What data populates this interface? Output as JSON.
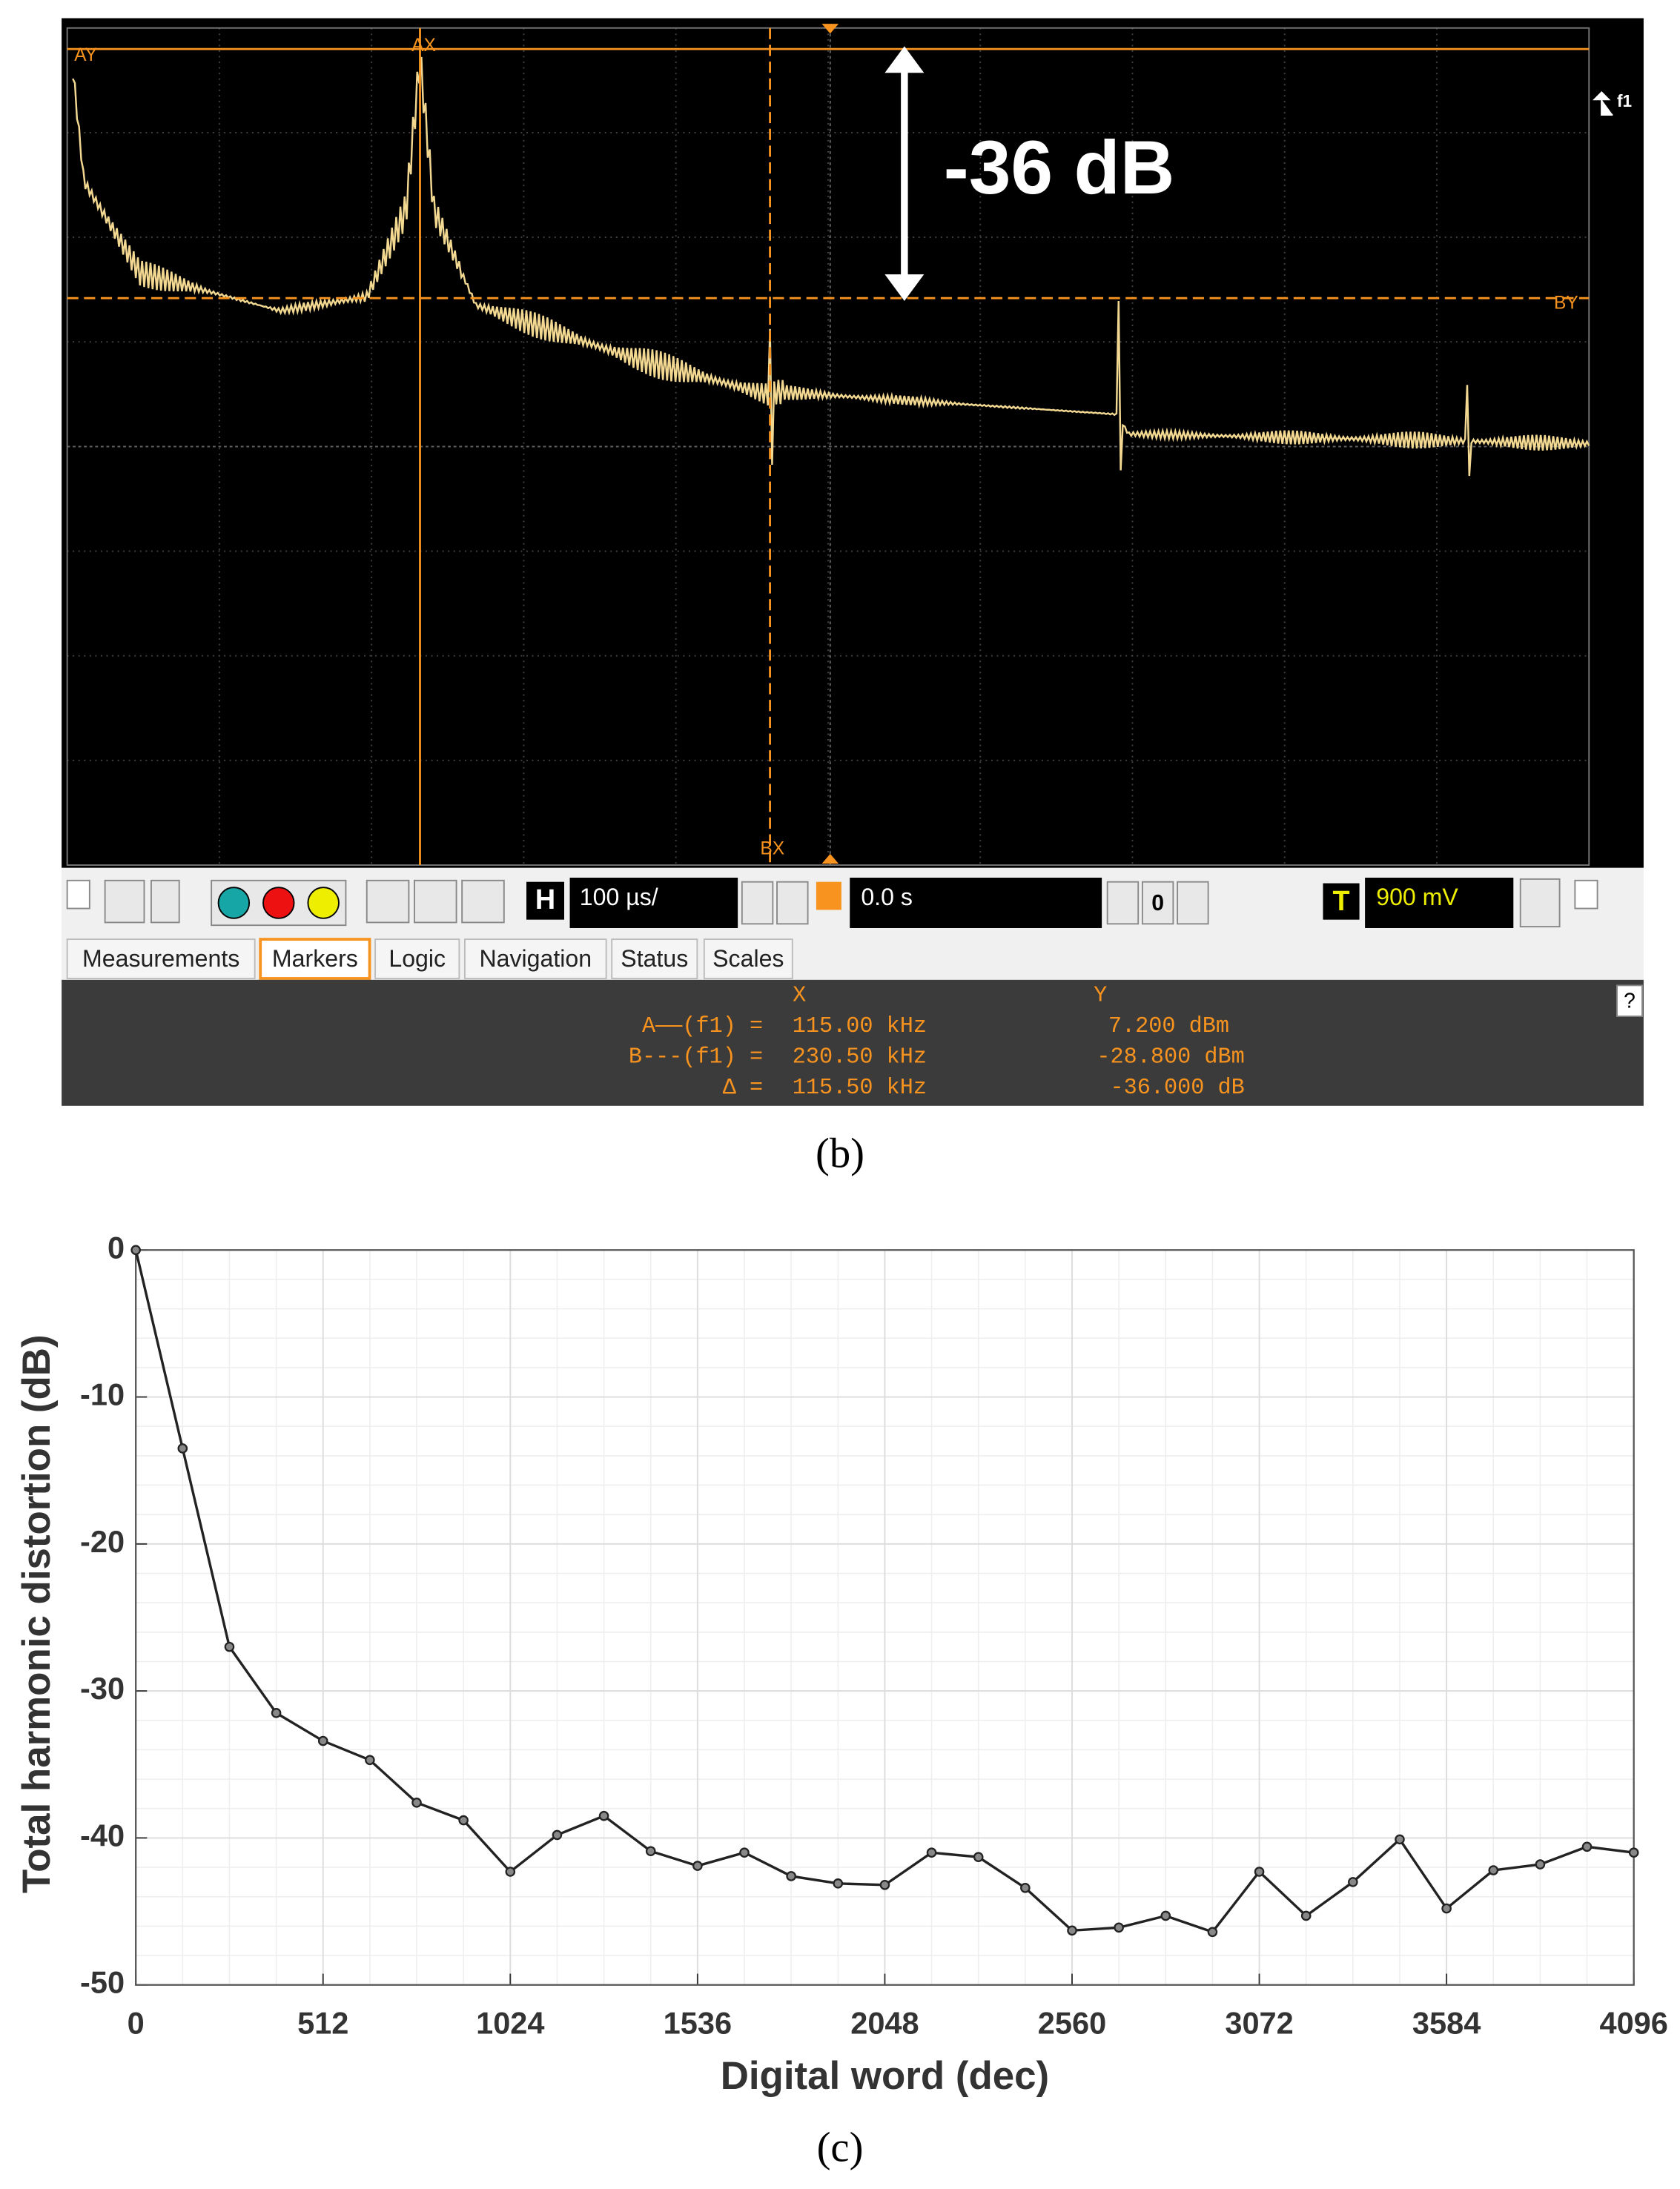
{
  "scope": {
    "annotation": "-36 dB",
    "markers": {
      "ay": "AY",
      "ax": "AX",
      "by": "BY",
      "bx": "BX",
      "f1": "f1"
    },
    "toolbar": {
      "h": "H",
      "timebase": "100 µs/",
      "position": "0.0 s",
      "nav": "0",
      "t": "T",
      "trigger": "900 mV"
    },
    "tabs": [
      "Measurements",
      "Markers",
      "Logic",
      "Navigation",
      "Status",
      "Scales"
    ],
    "readout": {
      "header_x": "X",
      "header_y": "Y",
      "help": "?",
      "rows": [
        [
          "A——(f1) =",
          "115.00 kHz",
          "7.200 dBm"
        ],
        [
          "B---(f1) =",
          "230.50 kHz",
          "-28.800 dBm"
        ],
        [
          "Δ =",
          "115.50 kHz",
          "-36.000 dB"
        ]
      ]
    },
    "caption": "(b)"
  },
  "chart_data": {
    "type": "line",
    "xlabel": "Digital word (dec)",
    "ylabel": "Total harmonic distortion (dB)",
    "caption": "(c)",
    "x": [
      0,
      128,
      256,
      384,
      512,
      640,
      768,
      896,
      1024,
      1152,
      1280,
      1408,
      1536,
      1664,
      1792,
      1920,
      2048,
      2176,
      2304,
      2432,
      2560,
      2688,
      2816,
      2944,
      3072,
      3200,
      3328,
      3456,
      3584,
      3712,
      3840,
      3968,
      4096
    ],
    "values": [
      0,
      -13.5,
      -27.0,
      -31.5,
      -33.4,
      -34.7,
      -37.6,
      -38.8,
      -42.3,
      -39.8,
      -38.5,
      -40.9,
      -41.9,
      -41.0,
      -42.6,
      -43.1,
      -43.2,
      -41.0,
      -41.3,
      -43.4,
      -46.3,
      -46.1,
      -45.3,
      -46.4,
      -42.3,
      -45.3,
      -43.0,
      -40.1,
      -44.8,
      -42.2,
      -41.8,
      -40.6,
      -41.0
    ],
    "color": "#222222",
    "xlim": [
      0,
      4096
    ],
    "ylim": [
      -50,
      0
    ],
    "xticks": [
      0,
      512,
      1024,
      1536,
      2048,
      2560,
      3072,
      3584,
      4096
    ],
    "yticks": [
      -50,
      -40,
      -30,
      -20,
      -10,
      0
    ],
    "grid": true,
    "minor_grid": true
  }
}
